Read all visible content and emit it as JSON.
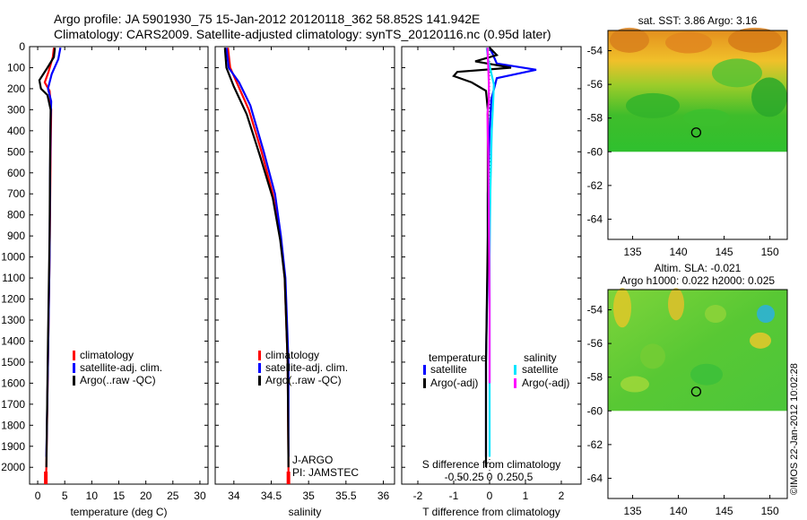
{
  "header": {
    "line1": "Argo profile: JA 5901930_75 15-Jan-2012 20120118_362 58.852S 141.942E",
    "line2": "Climatology: CARS2009. Satellite-adjusted climatology: synTS_20120116.nc (0.95d later)"
  },
  "depth_ticks": [
    "0",
    "100",
    "200",
    "300",
    "400",
    "500",
    "600",
    "700",
    "800",
    "900",
    "1000",
    "1100",
    "1200",
    "1300",
    "1400",
    "1500",
    "1600",
    "1700",
    "1800",
    "1900",
    "2000"
  ],
  "colors": {
    "climatology": "#ff0000",
    "satellite": "#0000ff",
    "argo": "#000000",
    "sat_salinity": "#00e5ff",
    "argo_salinity": "#ff00ff"
  },
  "chart_data": [
    {
      "type": "line",
      "xlabel": "temperature (deg C)",
      "xticks": [
        "0",
        "5",
        "10",
        "15",
        "20",
        "25",
        "30"
      ],
      "xlim": [
        -1.5,
        31.5
      ],
      "ylim": [
        0,
        2080
      ],
      "legend": {
        "placement": "lower-center",
        "entries": [
          "climatology",
          "satellite-adj. clim.",
          "Argo(..raw -QC)"
        ]
      },
      "series": [
        {
          "name": "climatology",
          "color": "#ff0000",
          "points": [
            [
              3.0,
              5
            ],
            [
              2.8,
              50
            ],
            [
              2.0,
              120
            ],
            [
              1.3,
              170
            ],
            [
              2.2,
              210
            ],
            [
              2.5,
              300
            ],
            [
              2.4,
              500
            ],
            [
              2.2,
              1000
            ],
            [
              1.9,
              1500
            ],
            [
              1.6,
              2000
            ],
            [
              1.5,
              2070
            ]
          ]
        },
        {
          "name": "satellite-adj. clim.",
          "color": "#0000ff",
          "points": [
            [
              4.2,
              5
            ],
            [
              3.8,
              60
            ],
            [
              2.6,
              130
            ],
            [
              1.9,
              200
            ],
            [
              2.5,
              260
            ],
            [
              2.4,
              350
            ],
            [
              2.3,
              600
            ],
            [
              2.2,
              1000
            ],
            [
              1.9,
              1500
            ],
            [
              1.6,
              1950
            ]
          ]
        },
        {
          "name": "Argo(..raw -QC)",
          "color": "#000000",
          "points": [
            [
              3.2,
              5
            ],
            [
              3.0,
              50
            ],
            [
              1.8,
              100
            ],
            [
              0.3,
              160
            ],
            [
              0.6,
              200
            ],
            [
              1.8,
              230
            ],
            [
              2.4,
              300
            ],
            [
              2.3,
              500
            ],
            [
              2.2,
              900
            ],
            [
              1.9,
              1400
            ],
            [
              1.6,
              2000
            ]
          ]
        }
      ]
    },
    {
      "type": "line",
      "xlabel": "salinity",
      "xticks": [
        "34",
        "34.5",
        "35",
        "35.5",
        "36"
      ],
      "xlim": [
        33.75,
        36.15
      ],
      "ylim": [
        0,
        2080
      ],
      "annotations": [
        "J-ARGO",
        "PI: JAMSTEC"
      ],
      "legend": {
        "placement": "lower-center",
        "entries": [
          "climatology",
          "satellite-adj. clim.",
          "Argo(..raw -QC)"
        ]
      },
      "series": [
        {
          "name": "climatology",
          "color": "#ff0000",
          "points": [
            [
              33.92,
              5
            ],
            [
              33.95,
              100
            ],
            [
              34.05,
              180
            ],
            [
              34.2,
              300
            ],
            [
              34.37,
              500
            ],
            [
              34.52,
              700
            ],
            [
              34.62,
              900
            ],
            [
              34.68,
              1100
            ],
            [
              34.72,
              1500
            ],
            [
              34.73,
              2000
            ],
            [
              34.73,
              2070
            ]
          ]
        },
        {
          "name": "satellite-adj. clim.",
          "color": "#0000ff",
          "points": [
            [
              33.9,
              5
            ],
            [
              33.93,
              100
            ],
            [
              34.07,
              170
            ],
            [
              34.22,
              280
            ],
            [
              34.4,
              500
            ],
            [
              34.55,
              700
            ],
            [
              34.63,
              900
            ],
            [
              34.69,
              1100
            ],
            [
              34.73,
              1500
            ],
            [
              34.73,
              1950
            ]
          ]
        },
        {
          "name": "Argo(..raw -QC)",
          "color": "#000000",
          "points": [
            [
              33.88,
              5
            ],
            [
              33.9,
              100
            ],
            [
              34.0,
              190
            ],
            [
              34.17,
              320
            ],
            [
              34.35,
              520
            ],
            [
              34.52,
              720
            ],
            [
              34.62,
              920
            ],
            [
              34.68,
              1100
            ],
            [
              34.72,
              1500
            ],
            [
              34.73,
              2000
            ]
          ]
        }
      ]
    },
    {
      "type": "line",
      "xlabel": "T difference from climatology",
      "xticks_bottom": [
        "-2",
        "-1",
        "0",
        "1",
        "2"
      ],
      "xlim_T": [
        -2.45,
        2.55
      ],
      "top_axis_title": "S difference from climatology",
      "xticks_top": [
        "-0.5",
        "-0.25",
        "0",
        "0.25",
        "0.5"
      ],
      "ylim": [
        0,
        2080
      ],
      "legend": {
        "placement": "lower-center",
        "temperature_title": "temperature",
        "salinity_title": "salinity",
        "temperature_entries": [
          "satellite",
          "Argo(-adj)"
        ],
        "salinity_entries": [
          "satellite",
          "Argo(-adj)"
        ]
      },
      "series": [
        {
          "name": "temperature satellite",
          "color": "#0000ff",
          "points": [
            [
              0.0,
              5
            ],
            [
              0.1,
              40
            ],
            [
              0.2,
              80
            ],
            [
              1.3,
              110
            ],
            [
              0.2,
              150
            ],
            [
              0.05,
              250
            ],
            [
              0.0,
              400
            ],
            [
              -0.05,
              700
            ],
            [
              -0.05,
              1000
            ],
            [
              -0.1,
              1500
            ],
            [
              -0.1,
              1950
            ]
          ]
        },
        {
          "name": "temperature Argo(-adj)",
          "color": "#000000",
          "points": [
            [
              0.0,
              5
            ],
            [
              0.2,
              40
            ],
            [
              -0.4,
              70
            ],
            [
              0.6,
              100
            ],
            [
              -0.9,
              120
            ],
            [
              -1.0,
              140
            ],
            [
              -0.5,
              170
            ],
            [
              -0.1,
              210
            ],
            [
              -0.05,
              300
            ],
            [
              -0.05,
              500
            ],
            [
              -0.05,
              900
            ],
            [
              -0.1,
              1500
            ],
            [
              -0.1,
              2000
            ]
          ]
        },
        {
          "name": "salinity satellite",
          "color": "#00e5ff",
          "points": [
            [
              -0.04,
              5
            ],
            [
              -0.02,
              60
            ],
            [
              0.02,
              120
            ],
            [
              0.06,
              180
            ],
            [
              0.05,
              260
            ],
            [
              0.03,
              400
            ],
            [
              0.01,
              700
            ],
            [
              0.0,
              1000
            ],
            [
              0.0,
              1500
            ],
            [
              0.0,
              1950
            ]
          ]
        },
        {
          "name": "salinity Argo(-adj)",
          "color": "#ff00ff",
          "points": [
            [
              -0.03,
              5
            ],
            [
              -0.02,
              80
            ],
            [
              -0.01,
              180
            ],
            [
              -0.01,
              260
            ],
            [
              -0.03,
              320
            ],
            [
              -0.02,
              500
            ],
            [
              -0.01,
              800
            ],
            [
              0.0,
              1200
            ],
            [
              0.0,
              1600
            ]
          ]
        }
      ]
    },
    {
      "type": "heatmap",
      "title": "sat. SST: 3.86 Argo: 3.16",
      "xticks": [
        "135",
        "140",
        "145",
        "150"
      ],
      "yticks": [
        "-54",
        "-56",
        "-58",
        "-60",
        "-62",
        "-64"
      ],
      "xlim": [
        132.3,
        151.9
      ],
      "ylim": [
        -65.2,
        -52.8
      ],
      "marker": {
        "lon": 141.942,
        "lat": -58.852
      }
    },
    {
      "type": "heatmap",
      "title_line1": "Altim. SLA: -0.021",
      "title_line2": "Argo h1000: 0.022 h2000: 0.025",
      "xticks": [
        "135",
        "140",
        "145",
        "150"
      ],
      "yticks": [
        "-54",
        "-56",
        "-58",
        "-60",
        "-62",
        "-64"
      ],
      "xlim": [
        132.3,
        151.9
      ],
      "ylim": [
        -65.2,
        -52.8
      ],
      "marker": {
        "lon": 141.942,
        "lat": -58.852
      }
    }
  ],
  "footer": {
    "stamp": "©IMOS 22-Jan-2012 10:02:28"
  }
}
